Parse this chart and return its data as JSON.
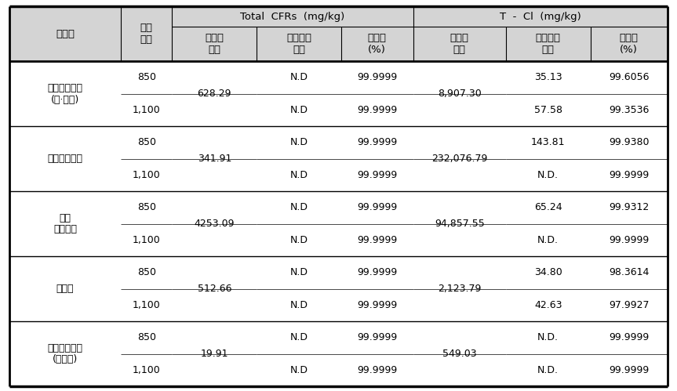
{
  "rows": [
    {
      "name": "휴대폰케이스\n(천·가죽)",
      "temps": [
        "850",
        "1,100"
      ],
      "cfr_waste": "628.29",
      "cfr_exhaust": [
        "N.D",
        "N.D"
      ],
      "cfr_decomp": [
        "99.9999",
        "99.9999"
      ],
      "tcl_waste": "8,907.30",
      "tcl_exhaust": [
        "35.13",
        "57.58"
      ],
      "tcl_conv": [
        "99.6056",
        "99.3536"
      ]
    },
    {
      "name": "난연고무시트",
      "temps": [
        "850",
        "1,100"
      ],
      "cfr_waste": "341.91",
      "cfr_exhaust": [
        "N.D",
        "N.D"
      ],
      "cfr_decomp": [
        "99.9999",
        "99.9999"
      ],
      "tcl_waste": "232,076.79",
      "tcl_exhaust": [
        "143.81",
        "N.D."
      ],
      "tcl_conv": [
        "99.9380",
        "99.9999"
      ]
    },
    {
      "name": "폴리\n우레탄폼",
      "temps": [
        "850",
        "1,100"
      ],
      "cfr_waste": "4253.09",
      "cfr_exhaust": [
        "N.D",
        "N.D"
      ],
      "cfr_decomp": [
        "99.9999",
        "99.9999"
      ],
      "tcl_waste": "94,857.55",
      "tcl_exhaust": [
        "65.24",
        "N.D."
      ],
      "tcl_conv": [
        "99.9312",
        "99.9999"
      ]
    },
    {
      "name": "카시트",
      "temps": [
        "850",
        "1,100"
      ],
      "cfr_waste": "512.66",
      "cfr_exhaust": [
        "N.D",
        "N.D"
      ],
      "cfr_decomp": [
        "99.9999",
        "99.9999"
      ],
      "tcl_waste": "2,123.79",
      "tcl_exhaust": [
        "34.80",
        "42.63"
      ],
      "tcl_conv": [
        "98.3614",
        "97.9927"
      ]
    },
    {
      "name": "휴대폰케이스\n(실리콘)",
      "temps": [
        "850",
        "1,100"
      ],
      "cfr_waste": "19.91",
      "cfr_exhaust": [
        "N.D",
        "N.D"
      ],
      "cfr_decomp": [
        "99.9999",
        "99.9999"
      ],
      "tcl_waste": "549.03",
      "tcl_exhaust": [
        "N.D.",
        "N.D."
      ],
      "tcl_conv": [
        "99.9999",
        "99.9999"
      ]
    }
  ],
  "header_bg": "#d4d4d4",
  "bg_color": "#ffffff",
  "border_color": "#000000",
  "font_size": 9.0,
  "header_font_size": 9.5,
  "cfr_header": "Total  CFRs  (mg/kg)",
  "tcl_header": "T  -  Cl  (mg/kg)",
  "col0_header": "시료명",
  "col1_header": "소각\n온도",
  "sub_headers_cfr": [
    "폐기물\n농도",
    "배출가스\n농도",
    "분해율\n(%)"
  ],
  "sub_headers_tcl": [
    "폐기물\n농도",
    "배출가스\n농도",
    "전환율\n(%)"
  ]
}
